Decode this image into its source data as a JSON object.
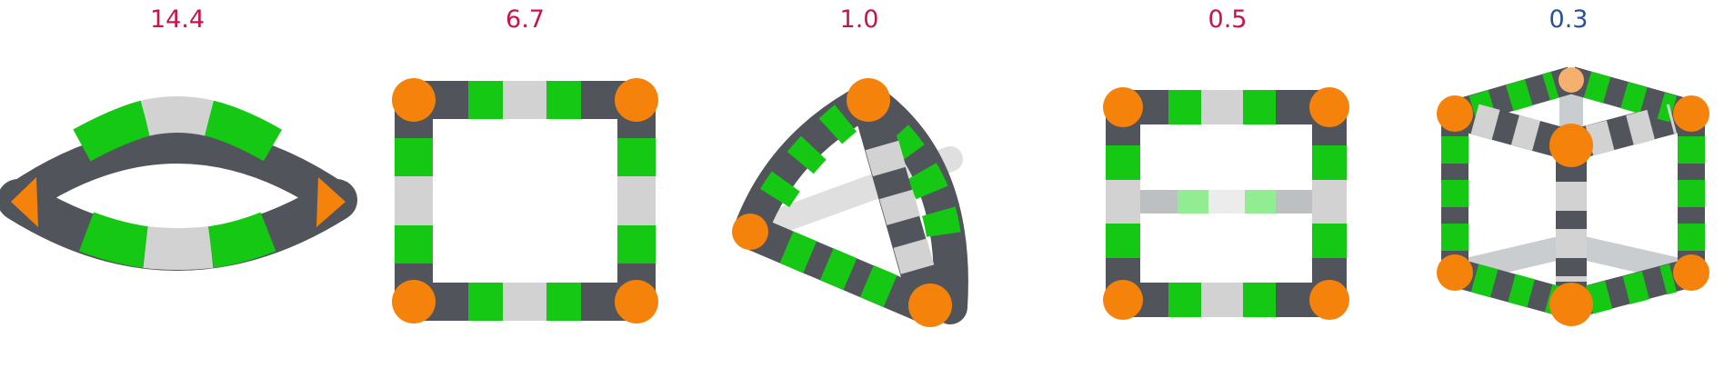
{
  "palette": {
    "orange": "#f5820a",
    "green": "#14c814",
    "silver": "#d2d2d2",
    "gray": "#51545a"
  },
  "figures": [
    {
      "id": "ring",
      "value": "14.4",
      "color": "#c8144b",
      "shape": "flat ring"
    },
    {
      "id": "square",
      "value": "6.7",
      "color": "#c8144b",
      "shape": "square"
    },
    {
      "id": "trigonal",
      "value": "1.0",
      "color": "#c8144b",
      "shape": "trigonal bipyramid"
    },
    {
      "id": "prism",
      "value": "0.5",
      "color": "#c8144b",
      "shape": "trigonal prism"
    },
    {
      "id": "cube",
      "value": "0.3",
      "color": "#2850a0",
      "shape": "cube"
    }
  ]
}
